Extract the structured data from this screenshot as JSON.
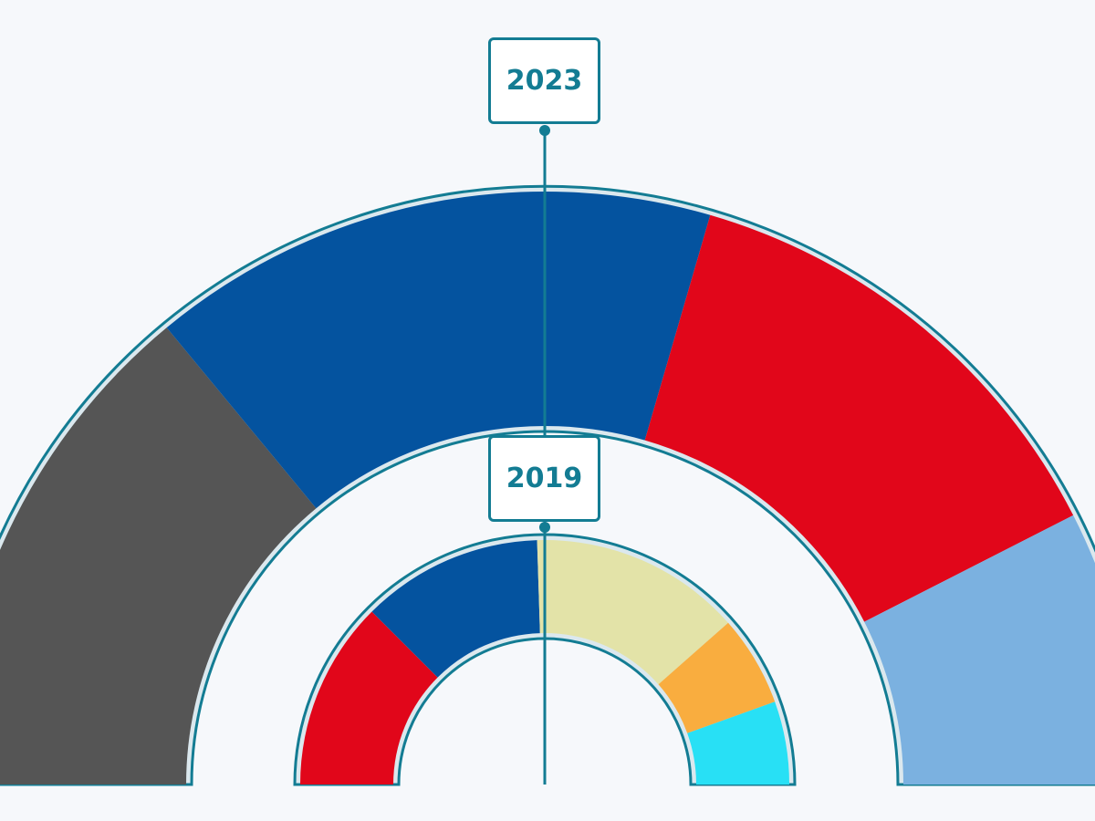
{
  "chart_data": [
    {
      "type": "pie",
      "subtype": "semicircle-parliament",
      "year_label": "2023",
      "slices": [
        {
          "value": 28,
          "color": "#555555"
        },
        {
          "value": 31,
          "color": "#04539f"
        },
        {
          "value": 26,
          "color": "#e1061a"
        },
        {
          "value": 15,
          "color": "#7bb1e0"
        }
      ]
    },
    {
      "type": "pie",
      "subtype": "semicircle-parliament",
      "year_label": "2019",
      "slices": [
        {
          "value": 25,
          "color": "#e1061a"
        },
        {
          "value": 24,
          "color": "#04539f"
        },
        {
          "value": 28,
          "color": "#e3e3a8"
        },
        {
          "value": 12,
          "color": "#f9ad3f"
        },
        {
          "value": 11,
          "color": "#28e0f5"
        }
      ]
    }
  ],
  "colors": {
    "accent": "#137c93",
    "background": "#f6f8fb"
  }
}
